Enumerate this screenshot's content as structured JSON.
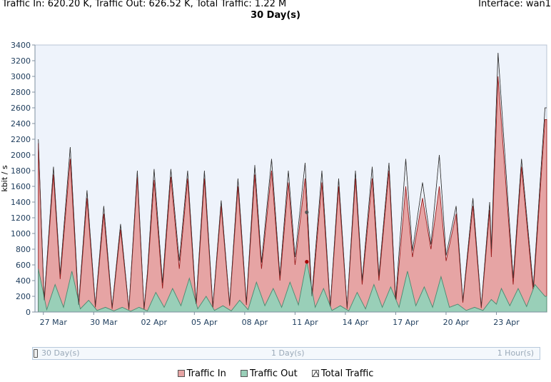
{
  "header": {
    "stats": "Traffic In: 620.20 K, Traffic Out: 626.52 K, Total Traffic: 1.22 M",
    "interface": "Interface: wan1"
  },
  "chart_data": {
    "type": "area",
    "title": "30 Day(s)",
    "ylabel": "kbit / s",
    "xlabel": "",
    "ylim": [
      0,
      3400
    ],
    "xlim": [
      0,
      30.5
    ],
    "yticks": [
      0,
      200,
      400,
      600,
      800,
      1000,
      1200,
      1400,
      1600,
      1800,
      2000,
      2200,
      2400,
      2600,
      2800,
      3000,
      3200,
      3400
    ],
    "xticks": [
      {
        "x": 0.5,
        "label": "27 Mar"
      },
      {
        "x": 3.5,
        "label": "30 Mar"
      },
      {
        "x": 6.5,
        "label": "02 Apr"
      },
      {
        "x": 9.5,
        "label": "05 Apr"
      },
      {
        "x": 12.5,
        "label": "08 Apr"
      },
      {
        "x": 15.5,
        "label": "11 Apr"
      },
      {
        "x": 18.5,
        "label": "14 Apr"
      },
      {
        "x": 21.5,
        "label": "17 Apr"
      },
      {
        "x": 24.5,
        "label": "20 Apr"
      },
      {
        "x": 27.5,
        "label": "23 Apr"
      }
    ],
    "grid": false,
    "legend_position": "bottom",
    "series": [
      {
        "name": "Traffic In",
        "color": "#e6a4a4",
        "stroke": "#9b1b1b",
        "peaks": [
          [
            0.2,
            2150
          ],
          [
            1.1,
            1750
          ],
          [
            2.1,
            1950
          ],
          [
            3.1,
            1450
          ],
          [
            4.1,
            1250
          ],
          [
            5.1,
            1050
          ],
          [
            6.1,
            1720
          ],
          [
            7.1,
            1680
          ],
          [
            8.1,
            1720
          ],
          [
            9.1,
            1700
          ],
          [
            10.1,
            1700
          ],
          [
            11.1,
            1350
          ],
          [
            12.1,
            1600
          ],
          [
            13.1,
            1750
          ],
          [
            14.1,
            1800
          ],
          [
            15.1,
            1650
          ],
          [
            16.1,
            1700
          ],
          [
            17.1,
            1650
          ],
          [
            18.1,
            1600
          ],
          [
            19.1,
            1700
          ],
          [
            20.1,
            1700
          ],
          [
            21.1,
            1800
          ],
          [
            22.1,
            1600
          ],
          [
            23.1,
            1450
          ],
          [
            24.1,
            1600
          ],
          [
            25.1,
            1250
          ],
          [
            26.1,
            1350
          ],
          [
            27.1,
            1300
          ],
          [
            27.6,
            3000
          ],
          [
            29.0,
            1850
          ],
          [
            30.4,
            2450
          ]
        ],
        "troughs": [
          [
            0.55,
            120
          ],
          [
            1.5,
            420
          ],
          [
            2.6,
            50
          ],
          [
            3.6,
            60
          ],
          [
            4.6,
            40
          ],
          [
            5.6,
            30
          ],
          [
            6.5,
            30
          ],
          [
            6.7,
            450
          ],
          [
            7.6,
            300
          ],
          [
            8.6,
            550
          ],
          [
            9.6,
            60
          ],
          [
            10.6,
            50
          ],
          [
            11.6,
            80
          ],
          [
            12.6,
            90
          ],
          [
            13.5,
            550
          ],
          [
            14.6,
            400
          ],
          [
            15.5,
            600
          ],
          [
            16.5,
            140
          ],
          [
            17.6,
            50
          ],
          [
            18.6,
            40
          ],
          [
            19.5,
            350
          ],
          [
            20.5,
            400
          ],
          [
            21.5,
            100
          ],
          [
            22.5,
            700
          ],
          [
            23.6,
            800
          ],
          [
            24.5,
            650
          ],
          [
            25.5,
            120
          ],
          [
            26.6,
            50
          ],
          [
            27.2,
            700
          ],
          [
            28.5,
            350
          ],
          [
            29.7,
            250
          ],
          [
            30.5,
            2450
          ]
        ]
      },
      {
        "name": "Traffic Out",
        "color": "#99cfb8",
        "stroke": "#4a8a70",
        "peaks": [
          [
            0.2,
            550
          ],
          [
            1.2,
            350
          ],
          [
            2.2,
            520
          ],
          [
            3.2,
            150
          ],
          [
            4.2,
            60
          ],
          [
            5.2,
            60
          ],
          [
            6.2,
            60
          ],
          [
            7.2,
            250
          ],
          [
            8.2,
            300
          ],
          [
            9.2,
            430
          ],
          [
            10.2,
            200
          ],
          [
            11.2,
            80
          ],
          [
            12.2,
            150
          ],
          [
            13.2,
            380
          ],
          [
            14.2,
            300
          ],
          [
            15.2,
            380
          ],
          [
            16.2,
            650
          ],
          [
            17.2,
            300
          ],
          [
            18.2,
            80
          ],
          [
            19.2,
            250
          ],
          [
            20.2,
            350
          ],
          [
            21.2,
            320
          ],
          [
            22.2,
            520
          ],
          [
            23.2,
            320
          ],
          [
            24.2,
            450
          ],
          [
            25.2,
            100
          ],
          [
            26.2,
            60
          ],
          [
            27.2,
            160
          ],
          [
            27.8,
            300
          ],
          [
            28.8,
            300
          ],
          [
            29.8,
            350
          ],
          [
            30.4,
            200
          ]
        ],
        "troughs": [
          [
            0.7,
            30
          ],
          [
            1.7,
            60
          ],
          [
            2.7,
            40
          ],
          [
            3.7,
            20
          ],
          [
            4.7,
            15
          ],
          [
            5.7,
            10
          ],
          [
            6.7,
            15
          ],
          [
            7.7,
            60
          ],
          [
            8.7,
            80
          ],
          [
            9.7,
            40
          ],
          [
            10.7,
            20
          ],
          [
            11.7,
            15
          ],
          [
            12.7,
            30
          ],
          [
            13.7,
            80
          ],
          [
            14.7,
            60
          ],
          [
            15.7,
            90
          ],
          [
            16.7,
            60
          ],
          [
            17.7,
            20
          ],
          [
            18.7,
            15
          ],
          [
            19.7,
            40
          ],
          [
            20.7,
            60
          ],
          [
            21.7,
            60
          ],
          [
            22.7,
            80
          ],
          [
            23.7,
            60
          ],
          [
            24.7,
            60
          ],
          [
            25.7,
            20
          ],
          [
            26.7,
            20
          ],
          [
            27.5,
            100
          ],
          [
            28.3,
            80
          ],
          [
            29.3,
            70
          ],
          [
            30.5,
            200
          ]
        ]
      },
      {
        "name": "Total Traffic",
        "color": "#ffffff",
        "stroke": "#333333",
        "peaks": [
          [
            0.2,
            2200
          ],
          [
            1.1,
            1850
          ],
          [
            2.1,
            2100
          ],
          [
            3.1,
            1550
          ],
          [
            4.1,
            1350
          ],
          [
            5.1,
            1120
          ],
          [
            6.1,
            1800
          ],
          [
            7.1,
            1820
          ],
          [
            8.1,
            1820
          ],
          [
            9.1,
            1800
          ],
          [
            10.1,
            1800
          ],
          [
            11.1,
            1420
          ],
          [
            12.1,
            1700
          ],
          [
            13.1,
            1870
          ],
          [
            14.1,
            1950
          ],
          [
            15.1,
            1800
          ],
          [
            16.1,
            1900
          ],
          [
            17.1,
            1800
          ],
          [
            18.1,
            1700
          ],
          [
            19.1,
            1800
          ],
          [
            20.1,
            1850
          ],
          [
            21.1,
            1900
          ],
          [
            22.1,
            1950
          ],
          [
            23.1,
            1650
          ],
          [
            24.1,
            2000
          ],
          [
            25.1,
            1350
          ],
          [
            26.1,
            1450
          ],
          [
            27.1,
            1400
          ],
          [
            27.6,
            3300
          ],
          [
            29.0,
            1950
          ],
          [
            30.4,
            2600
          ]
        ],
        "troughs": [
          [
            0.55,
            150
          ],
          [
            1.5,
            480
          ],
          [
            2.6,
            90
          ],
          [
            3.6,
            80
          ],
          [
            4.6,
            60
          ],
          [
            5.6,
            40
          ],
          [
            6.5,
            40
          ],
          [
            6.7,
            500
          ],
          [
            7.6,
            370
          ],
          [
            8.6,
            650
          ],
          [
            9.6,
            100
          ],
          [
            10.6,
            70
          ],
          [
            11.6,
            100
          ],
          [
            12.6,
            120
          ],
          [
            13.5,
            630
          ],
          [
            14.6,
            460
          ],
          [
            15.5,
            700
          ],
          [
            16.5,
            200
          ],
          [
            17.6,
            70
          ],
          [
            18.6,
            60
          ],
          [
            19.5,
            400
          ],
          [
            20.5,
            460
          ],
          [
            21.5,
            160
          ],
          [
            22.5,
            780
          ],
          [
            23.6,
            860
          ],
          [
            24.5,
            720
          ],
          [
            25.5,
            140
          ],
          [
            26.6,
            70
          ],
          [
            27.2,
            800
          ],
          [
            28.5,
            430
          ],
          [
            29.7,
            320
          ],
          [
            30.5,
            2600
          ]
        ]
      }
    ],
    "markers": [
      {
        "x": 16.2,
        "y": 640,
        "color": "#a80000"
      },
      {
        "x": 16.2,
        "y": 1270,
        "color": "#555555"
      }
    ]
  },
  "range_slider": {
    "left_label": "30 Day(s)",
    "mid_label": "1 Day(s)",
    "right_label": "1 Hour(s)"
  },
  "legend": {
    "in_label": "Traffic In",
    "out_label": "Traffic Out",
    "total_label": "Total Traffic"
  }
}
